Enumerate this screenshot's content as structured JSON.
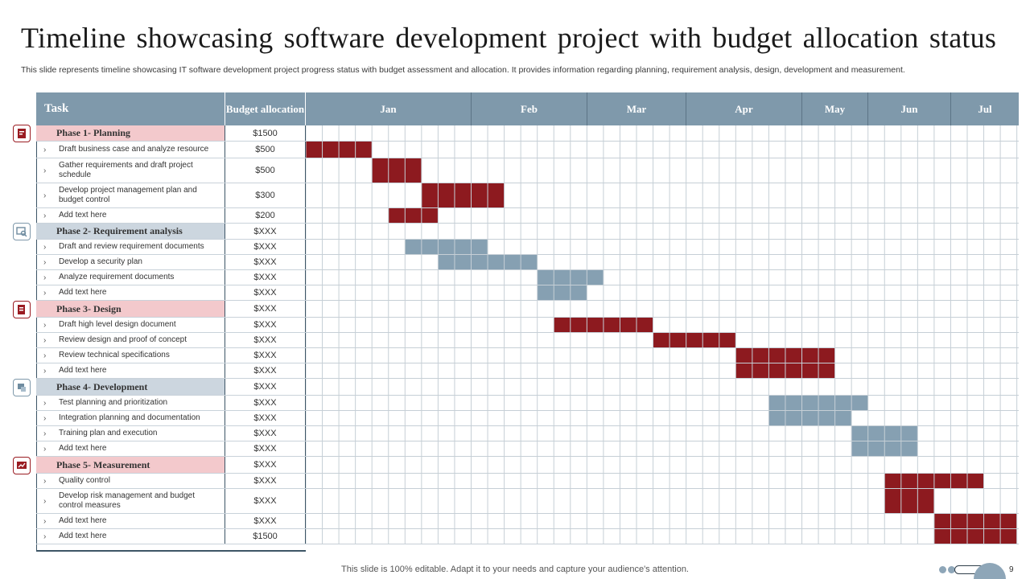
{
  "title": "Timeline showcasing software development project with budget allocation status",
  "subtitle": "This slide represents timeline showcasing IT software development project progress status with budget assessment and allocation. It provides information regarding planning, requirement analysis, design, development and measurement.",
  "header": {
    "task": "Task",
    "budget": "Budget allocation",
    "months": [
      "Jan",
      "Feb",
      "Mar",
      "Apr",
      "May",
      "Jun",
      "Jul"
    ]
  },
  "rows": [
    {
      "type": "phase",
      "label": "Phase 1- Planning",
      "budget": "$1500",
      "color": "red",
      "icon": "planning-icon"
    },
    {
      "type": "task",
      "label": "Draft business case and analyze resource",
      "budget": "$500",
      "bar": [
        0,
        4
      ],
      "color": "red"
    },
    {
      "type": "task",
      "label": "Gather requirements and draft project schedule",
      "budget": "$500",
      "bar": [
        4,
        3
      ],
      "color": "red"
    },
    {
      "type": "task",
      "label": "Develop project management  plan and budget control",
      "budget": "$300",
      "bar": [
        7,
        5
      ],
      "color": "red"
    },
    {
      "type": "task",
      "label": "Add text here",
      "budget": "$200",
      "bar": [
        5,
        3
      ],
      "color": "red"
    },
    {
      "type": "phase",
      "label": "Phase 2- Requirement analysis",
      "budget": "$XXX",
      "color": "blue",
      "icon": "requirement-analysis-icon"
    },
    {
      "type": "task",
      "label": "Draft and review requirement documents",
      "budget": "$XXX",
      "bar": [
        6,
        5
      ],
      "color": "blue"
    },
    {
      "type": "task",
      "label": "Develop a security plan",
      "budget": "$XXX",
      "bar": [
        8,
        6
      ],
      "color": "blue"
    },
    {
      "type": "task",
      "label": "Analyze requirement documents",
      "budget": "$XXX",
      "bar": [
        14,
        4
      ],
      "color": "blue"
    },
    {
      "type": "task",
      "label": "Add text here",
      "budget": "$XXX",
      "bar": [
        14,
        3
      ],
      "color": "blue"
    },
    {
      "type": "phase",
      "label": "Phase 3- Design",
      "budget": "$XXX",
      "color": "red",
      "icon": "design-icon"
    },
    {
      "type": "task",
      "label": "Draft high level design document",
      "budget": "$XXX",
      "bar": [
        15,
        6
      ],
      "color": "red"
    },
    {
      "type": "task",
      "label": "Review design and proof of concept",
      "budget": "$XXX",
      "bar": [
        21,
        5
      ],
      "color": "red"
    },
    {
      "type": "task",
      "label": "Review technical specifications",
      "budget": "$XXX",
      "bar": [
        26,
        6
      ],
      "color": "red"
    },
    {
      "type": "task",
      "label": "Add text here",
      "budget": "$XXX",
      "bar": [
        26,
        6
      ],
      "color": "red"
    },
    {
      "type": "phase",
      "label": "Phase 4- Development",
      "budget": "$XXX",
      "color": "blue",
      "icon": "development-icon"
    },
    {
      "type": "task",
      "label": "Test planning and prioritization",
      "budget": "$XXX",
      "bar": [
        28,
        6
      ],
      "color": "blue"
    },
    {
      "type": "task",
      "label": "Integration planning and documentation",
      "budget": "$XXX",
      "bar": [
        28,
        5
      ],
      "color": "blue"
    },
    {
      "type": "task",
      "label": "Training plan and execution",
      "budget": "$XXX",
      "bar": [
        33,
        4
      ],
      "color": "blue"
    },
    {
      "type": "task",
      "label": "Add text here",
      "budget": "$XXX",
      "bar": [
        33,
        4
      ],
      "color": "blue"
    },
    {
      "type": "phase",
      "label": "Phase 5- Measurement",
      "budget": "$XXX",
      "color": "red",
      "icon": "measurement-icon"
    },
    {
      "type": "task",
      "label": "Quality control",
      "budget": "$XXX",
      "bar": [
        35,
        6
      ],
      "color": "red"
    },
    {
      "type": "task",
      "label": "Develop risk management and budget control measures",
      "budget": "$XXX",
      "bar": [
        35,
        3
      ],
      "color": "red"
    },
    {
      "type": "task",
      "label": "Add text here",
      "budget": "$XXX",
      "bar": [
        38,
        5
      ],
      "color": "red"
    },
    {
      "type": "task",
      "label": "Add text here",
      "budget": "$1500",
      "bar": [
        38,
        5
      ],
      "color": "red"
    }
  ],
  "colors": {
    "red": "#8d1a1f",
    "blue": "#86a0b2",
    "header": "#7f99ab"
  },
  "footer": "This slide is 100% editable. Adapt it to your needs and capture your audience's attention.",
  "page_number": "9"
}
